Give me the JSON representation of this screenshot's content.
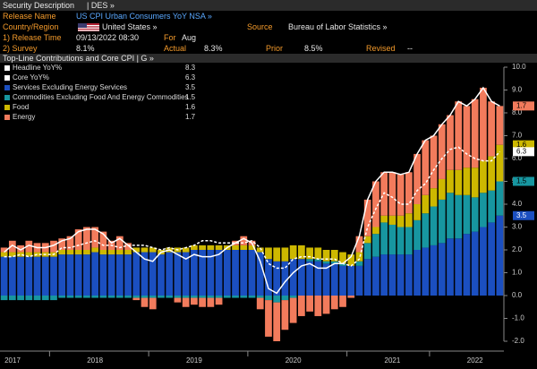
{
  "header": {
    "title": "Security Description",
    "code": "| DES »"
  },
  "fields": {
    "release_name_label": "Release Name",
    "release_name": "US CPI Urban Consumers YoY NSA »",
    "country_label": "Country/Region",
    "country": "United States »",
    "source_label": "Source",
    "source": "Bureau of Labor Statistics »",
    "release_time_label": "1) Release Time",
    "release_time": "09/13/2022 08:30",
    "for_label": "For",
    "for": "Aug",
    "survey_label": "2) Survey",
    "survey": "8.1%",
    "actual_label": "Actual",
    "actual": "8.3%",
    "prior_label": "Prior",
    "prior": "8.5%",
    "revised_label": "Revised",
    "revised": "--"
  },
  "chart_data": {
    "type": "stacked-bar",
    "title": "Top-Line Contributions and Core CPI | G »",
    "categories": [
      "2017",
      null,
      null,
      null,
      null,
      null,
      null,
      null,
      null,
      null,
      null,
      "2018",
      null,
      null,
      null,
      null,
      null,
      null,
      null,
      null,
      null,
      null,
      null,
      "2019",
      null,
      null,
      null,
      null,
      null,
      null,
      null,
      null,
      null,
      null,
      null,
      "2020",
      null,
      null,
      null,
      null,
      null,
      null,
      null,
      null,
      null,
      null,
      null,
      "2021",
      null,
      null,
      null,
      null,
      null,
      null,
      null,
      null,
      null,
      "2022",
      null,
      null,
      null
    ],
    "lines": [
      {
        "name": "Headline YoY%",
        "color": "#ffffff",
        "style": "solid",
        "values": [
          1.9,
          2.2,
          2.0,
          2.2,
          2.1,
          2.1,
          2.2,
          2.4,
          2.5,
          2.8,
          2.9,
          2.9,
          2.7,
          2.3,
          2.5,
          2.2,
          1.9,
          1.6,
          1.5,
          1.9,
          2.0,
          1.8,
          1.6,
          1.8,
          1.7,
          1.7,
          1.8,
          2.1,
          2.3,
          2.5,
          2.3,
          1.5,
          0.3,
          0.1,
          0.6,
          1.0,
          1.3,
          1.4,
          1.2,
          1.2,
          1.4,
          1.4,
          1.7,
          2.6,
          4.2,
          5.0,
          5.4,
          5.4,
          5.3,
          5.4,
          6.2,
          6.8,
          7.0,
          7.5,
          7.9,
          8.5,
          8.3,
          8.6,
          9.1,
          8.5,
          8.3
        ]
      },
      {
        "name": "Core YoY%",
        "color": "#ffffff",
        "style": "dashed",
        "values": [
          1.7,
          1.7,
          1.8,
          1.7,
          1.8,
          1.8,
          1.8,
          2.1,
          2.1,
          2.2,
          2.3,
          2.4,
          2.2,
          2.2,
          2.1,
          2.2,
          2.2,
          2.2,
          2.1,
          2.0,
          2.1,
          2.0,
          2.1,
          2.2,
          2.4,
          2.4,
          2.3,
          2.3,
          2.3,
          2.3,
          2.4,
          2.1,
          1.4,
          1.2,
          1.2,
          1.6,
          1.7,
          1.7,
          1.6,
          1.6,
          1.6,
          1.4,
          1.3,
          1.6,
          3.0,
          3.8,
          4.5,
          4.3,
          4.0,
          4.0,
          4.6,
          4.9,
          5.5,
          6.0,
          6.4,
          6.5,
          6.2,
          6.0,
          5.9,
          5.9,
          6.3
        ]
      }
    ],
    "series": [
      {
        "name": "Services Excluding Energy Services",
        "color": "#1b4fc0",
        "values": [
          1.7,
          1.7,
          1.7,
          1.7,
          1.7,
          1.7,
          1.7,
          1.8,
          1.8,
          1.8,
          1.8,
          1.9,
          1.8,
          1.8,
          1.8,
          1.8,
          1.9,
          1.9,
          1.9,
          1.8,
          1.9,
          1.9,
          1.9,
          2.0,
          2.0,
          2.0,
          2.0,
          2.0,
          2.0,
          2.0,
          2.0,
          1.9,
          1.6,
          1.5,
          1.5,
          1.6,
          1.6,
          1.5,
          1.5,
          1.4,
          1.4,
          1.3,
          1.3,
          1.3,
          1.6,
          1.7,
          1.8,
          1.8,
          1.8,
          1.8,
          2.0,
          2.1,
          2.2,
          2.3,
          2.5,
          2.5,
          2.7,
          2.8,
          3.0,
          3.2,
          3.5
        ]
      },
      {
        "name": "Commodities Excluding Food And Energy Commodities",
        "color": "#1796a0",
        "values": [
          -0.2,
          -0.2,
          -0.2,
          -0.2,
          -0.2,
          -0.2,
          -0.2,
          -0.1,
          -0.1,
          -0.1,
          -0.1,
          -0.1,
          -0.1,
          -0.1,
          -0.1,
          -0.1,
          -0.1,
          -0.1,
          -0.1,
          -0.1,
          -0.1,
          -0.1,
          -0.1,
          -0.1,
          -0.1,
          -0.1,
          -0.1,
          -0.1,
          -0.1,
          -0.1,
          -0.1,
          -0.1,
          -0.2,
          -0.3,
          -0.2,
          -0.1,
          0.0,
          0.1,
          0.1,
          0.1,
          0.1,
          0.1,
          0.0,
          0.2,
          0.7,
          1.0,
          1.4,
          1.3,
          1.2,
          1.2,
          1.3,
          1.5,
          1.7,
          1.9,
          2.0,
          1.9,
          1.7,
          1.5,
          1.5,
          1.4,
          1.5
        ]
      },
      {
        "name": "Food",
        "color": "#cdb800",
        "values": [
          0.2,
          0.2,
          0.2,
          0.2,
          0.2,
          0.2,
          0.2,
          0.2,
          0.2,
          0.2,
          0.2,
          0.2,
          0.2,
          0.2,
          0.2,
          0.2,
          0.2,
          0.2,
          0.2,
          0.2,
          0.2,
          0.2,
          0.2,
          0.2,
          0.2,
          0.2,
          0.2,
          0.2,
          0.2,
          0.2,
          0.2,
          0.2,
          0.5,
          0.6,
          0.6,
          0.6,
          0.6,
          0.5,
          0.5,
          0.5,
          0.5,
          0.5,
          0.5,
          0.4,
          0.3,
          0.3,
          0.3,
          0.4,
          0.5,
          0.6,
          0.7,
          0.8,
          0.8,
          0.9,
          1.0,
          1.1,
          1.2,
          1.3,
          1.4,
          1.5,
          1.6
        ]
      },
      {
        "name": "Energy",
        "color": "#f27b5c",
        "values": [
          0.2,
          0.5,
          0.3,
          0.5,
          0.4,
          0.4,
          0.5,
          0.5,
          0.6,
          0.9,
          1.0,
          0.9,
          0.8,
          0.4,
          0.6,
          0.3,
          -0.1,
          -0.4,
          -0.5,
          0.0,
          0.0,
          -0.2,
          -0.4,
          -0.3,
          -0.4,
          -0.4,
          -0.3,
          0.0,
          0.2,
          0.4,
          0.2,
          -0.5,
          -1.6,
          -1.7,
          -1.3,
          -1.1,
          -0.9,
          -0.7,
          -0.9,
          -0.8,
          -0.6,
          -0.5,
          -0.1,
          0.7,
          1.6,
          2.0,
          1.9,
          1.9,
          1.8,
          1.8,
          2.2,
          2.4,
          2.3,
          2.4,
          2.4,
          3.0,
          2.7,
          3.0,
          3.2,
          2.4,
          1.7
        ]
      }
    ],
    "ylim": [
      -2.0,
      10.0
    ],
    "yticks": [
      {
        "value": -2,
        "label": "-2.0"
      },
      {
        "value": -1,
        "label": "-1.0"
      },
      {
        "value": 0,
        "label": "0.0"
      },
      {
        "value": 1,
        "label": "1.0"
      },
      {
        "value": 2,
        "label": "2.0"
      },
      {
        "value": 3,
        "label": "3.0"
      },
      {
        "value": 4,
        "label": "4.0"
      },
      {
        "value": 5,
        "label": "5.0"
      },
      {
        "value": 6,
        "label": "6.0"
      },
      {
        "value": 7,
        "label": "7.0"
      },
      {
        "value": 8,
        "label": "8.0"
      },
      {
        "value": 9,
        "label": "9.0"
      },
      {
        "value": 10,
        "label": "10.0"
      }
    ],
    "grid": false,
    "legend": "top-left"
  }
}
